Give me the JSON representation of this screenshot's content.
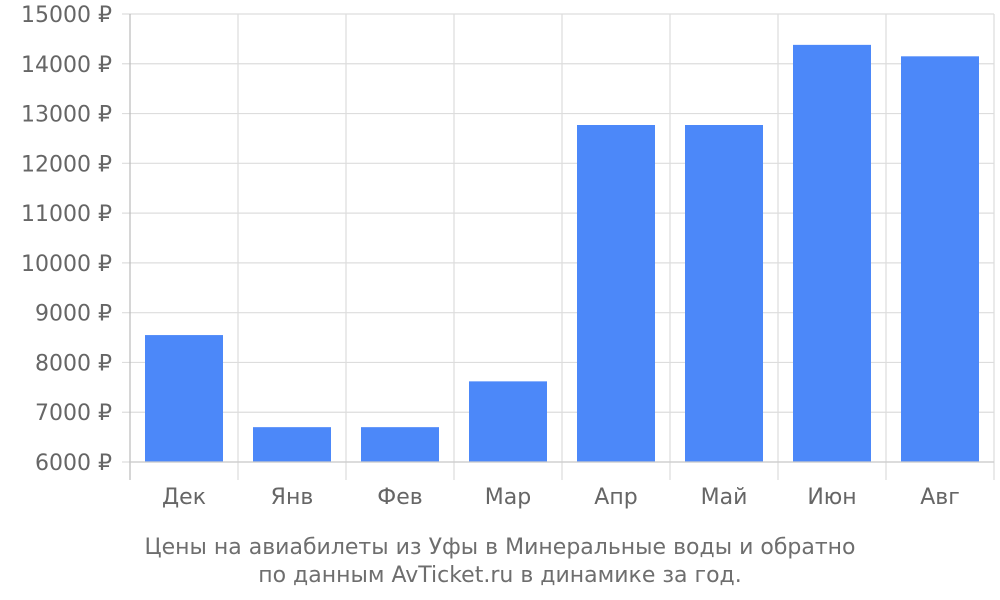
{
  "chart_data": {
    "type": "bar",
    "categories": [
      "Дек",
      "Янв",
      "Фев",
      "Мар",
      "Апр",
      "Май",
      "Июн",
      "Авг"
    ],
    "values": [
      8550,
      6700,
      6700,
      7620,
      12770,
      12770,
      14380,
      14150
    ],
    "ylim": [
      6000,
      15000
    ],
    "yticks": [
      6000,
      7000,
      8000,
      9000,
      10000,
      11000,
      12000,
      13000,
      14000,
      15000
    ],
    "ytick_labels": [
      "6000 ₽",
      "7000 ₽",
      "8000 ₽",
      "9000 ₽",
      "10000 ₽",
      "11000 ₽",
      "12000 ₽",
      "13000 ₽",
      "14000 ₽",
      "15000 ₽"
    ],
    "grid": true,
    "bar_color": "#4c88f9",
    "caption": [
      "Цены на авиабилеты из Уфы в Минеральные воды и обратно",
      "по данным AvTicket.ru в динамике за год."
    ]
  }
}
